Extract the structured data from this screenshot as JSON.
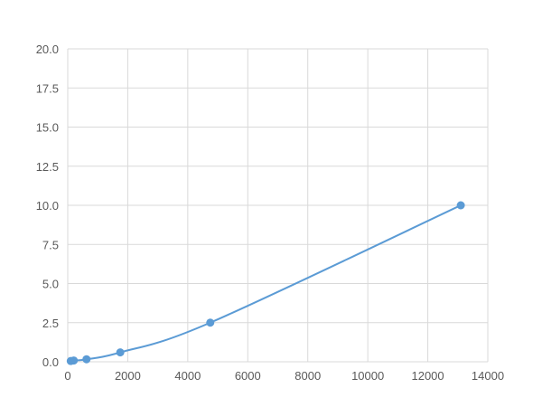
{
  "chart_data": {
    "type": "scatter",
    "title": "",
    "xlabel": "",
    "ylabel": "",
    "xlim": [
      0,
      14000
    ],
    "ylim": [
      0,
      20
    ],
    "x_ticks": [
      "0",
      "2000",
      "4000",
      "6000",
      "8000",
      "10000",
      "12000",
      "14000"
    ],
    "y_ticks": [
      "0.0",
      "2.5",
      "5.0",
      "7.5",
      "10.0",
      "12.5",
      "15.0",
      "17.5",
      "20.0"
    ],
    "grid": true,
    "legend": "none",
    "series": [
      {
        "x": [
          100,
          200,
          625,
          1750,
          4750,
          13100
        ],
        "y": [
          0.05,
          0.08,
          0.16,
          0.6,
          2.5,
          10.0
        ],
        "trendline": "smooth",
        "color": "#5b9bd5"
      }
    ]
  }
}
